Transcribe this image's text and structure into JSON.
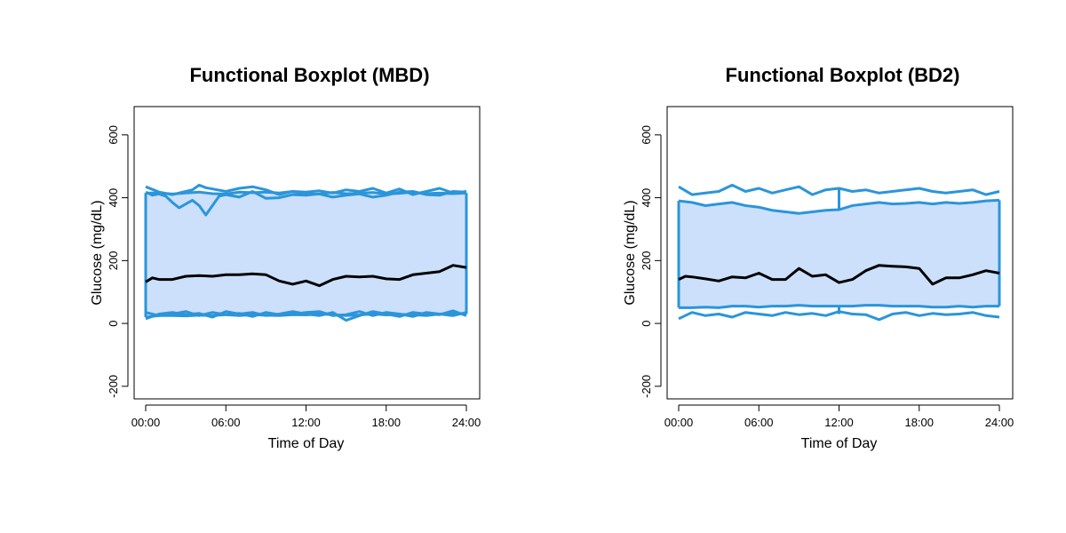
{
  "chart_data": [
    {
      "type": "line",
      "title": "Functional Boxplot (MBD)",
      "xlabel": "Time of Day",
      "ylabel": "Glucose (mg/dL)",
      "xlim": [
        0,
        24
      ],
      "ylim": [
        -240,
        690
      ],
      "x_ticks": [
        0,
        6,
        12,
        18,
        24
      ],
      "x_tick_labels": [
        "00:00",
        "06:00",
        "12:00",
        "18:00",
        "24:00"
      ],
      "y_ticks": [
        -200,
        0,
        200,
        400,
        600
      ],
      "y_tick_labels": [
        "-200",
        "0",
        "200",
        "400",
        "600"
      ],
      "grid": false,
      "band": {
        "x": [
          0,
          1,
          2,
          3,
          4,
          5,
          6,
          7,
          8,
          9,
          10,
          11,
          12,
          13,
          14,
          15,
          16,
          17,
          18,
          19,
          20,
          21,
          22,
          23,
          24
        ],
        "upper": [
          415,
          415,
          412,
          415,
          418,
          413,
          412,
          418,
          416,
          418,
          415,
          420,
          412,
          412,
          417,
          413,
          414,
          417,
          412,
          414,
          418,
          413,
          415,
          413,
          415
        ],
        "lower": [
          20,
          25,
          25,
          24,
          26,
          25,
          28,
          25,
          28,
          26,
          25,
          28,
          27,
          30,
          28,
          25,
          27,
          30,
          27,
          29,
          28,
          25,
          30,
          32,
          30
        ],
        "fill": "#cce0fb",
        "edge": "#2b95da"
      },
      "series": [
        {
          "role": "outer-upper",
          "color": "#2b95da",
          "x": [
            0,
            1,
            2,
            3,
            3.5,
            4,
            4.5,
            5,
            6,
            7,
            8,
            9,
            10,
            11,
            12,
            13,
            14,
            15,
            16,
            17,
            18,
            19,
            20,
            21,
            22,
            23,
            24
          ],
          "values": [
            435,
            418,
            410,
            420,
            425,
            440,
            432,
            428,
            420,
            430,
            435,
            425,
            410,
            420,
            418,
            422,
            415,
            425,
            420,
            430,
            415,
            428,
            410,
            420,
            430,
            415,
            420
          ]
        },
        {
          "role": "outer-upper-dip",
          "color": "#2b95da",
          "x": [
            0,
            0.5,
            1,
            1.5,
            2,
            2.5,
            3,
            3.5,
            4,
            4.5,
            5,
            5.5,
            6,
            7,
            8,
            9,
            10,
            11,
            12,
            13,
            14,
            15,
            16,
            17,
            18,
            19,
            20,
            21,
            22,
            23,
            24
          ],
          "values": [
            418,
            408,
            412,
            405,
            385,
            368,
            380,
            392,
            375,
            345,
            375,
            405,
            410,
            402,
            420,
            398,
            400,
            410,
            408,
            412,
            402,
            408,
            412,
            402,
            408,
            418,
            420,
            410,
            408,
            420,
            418
          ]
        },
        {
          "role": "outer-lower",
          "color": "#2b95da",
          "x": [
            0,
            1,
            2,
            3,
            4,
            5,
            6,
            7,
            8,
            9,
            10,
            11,
            12,
            13,
            14,
            15,
            16,
            17,
            18,
            19,
            20,
            21,
            22,
            23,
            24
          ],
          "values": [
            15,
            30,
            35,
            28,
            32,
            20,
            38,
            30,
            35,
            25,
            30,
            38,
            30,
            25,
            35,
            10,
            25,
            38,
            30,
            22,
            35,
            30,
            28,
            40,
            25
          ]
        },
        {
          "role": "outer-lower-2",
          "color": "#2b95da",
          "x": [
            0,
            1,
            2,
            3,
            4,
            5,
            6,
            7,
            8,
            9,
            10,
            11,
            12,
            13,
            14,
            15,
            16,
            17,
            18,
            19,
            20,
            21,
            22,
            23,
            24
          ],
          "values": [
            35,
            25,
            30,
            38,
            25,
            35,
            28,
            32,
            22,
            35,
            28,
            30,
            35,
            38,
            25,
            28,
            38,
            25,
            35,
            30,
            22,
            35,
            30,
            25,
            35
          ]
        },
        {
          "role": "median",
          "color": "#000000",
          "x": [
            0,
            0.5,
            1,
            2,
            3,
            4,
            5,
            6,
            7,
            8,
            9,
            10,
            11,
            12,
            13,
            14,
            15,
            16,
            17,
            18,
            19,
            20,
            21,
            22,
            23,
            24
          ],
          "values": [
            132,
            145,
            140,
            140,
            150,
            152,
            150,
            155,
            155,
            158,
            155,
            135,
            125,
            135,
            120,
            140,
            150,
            148,
            150,
            142,
            140,
            155,
            160,
            165,
            185,
            178
          ]
        }
      ]
    },
    {
      "type": "line",
      "title": "Functional Boxplot (BD2)",
      "xlabel": "Time of Day",
      "ylabel": "Glucose (mg/dL)",
      "xlim": [
        0,
        24
      ],
      "ylim": [
        -240,
        690
      ],
      "x_ticks": [
        0,
        6,
        12,
        18,
        24
      ],
      "x_tick_labels": [
        "00:00",
        "06:00",
        "12:00",
        "18:00",
        "24:00"
      ],
      "y_ticks": [
        -200,
        0,
        200,
        400,
        600
      ],
      "y_tick_labels": [
        "-200",
        "0",
        "200",
        "400",
        "600"
      ],
      "grid": false,
      "band": {
        "x": [
          0,
          1,
          2,
          3,
          4,
          5,
          6,
          7,
          8,
          9,
          10,
          11,
          12,
          13,
          14,
          15,
          16,
          17,
          18,
          19,
          20,
          21,
          22,
          23,
          24
        ],
        "upper": [
          390,
          385,
          375,
          380,
          385,
          375,
          370,
          360,
          355,
          350,
          355,
          360,
          362,
          375,
          380,
          385,
          380,
          382,
          385,
          380,
          385,
          382,
          385,
          390,
          392
        ],
        "lower": [
          50,
          50,
          52,
          50,
          55,
          55,
          52,
          55,
          55,
          58,
          55,
          55,
          55,
          55,
          58,
          58,
          55,
          55,
          55,
          52,
          52,
          55,
          52,
          55,
          55
        ],
        "fill": "#cce0fb",
        "edge": "#2b95da"
      },
      "series": [
        {
          "role": "outer-upper",
          "color": "#2b95da",
          "x": [
            0,
            1,
            2,
            3,
            4,
            5,
            6,
            7,
            8,
            9,
            10,
            11,
            12,
            13,
            14,
            15,
            16,
            17,
            18,
            19,
            20,
            21,
            22,
            23,
            24
          ],
          "values": [
            435,
            410,
            415,
            420,
            440,
            420,
            430,
            415,
            425,
            435,
            410,
            425,
            430,
            420,
            425,
            415,
            420,
            425,
            430,
            420,
            415,
            420,
            425,
            410,
            420
          ]
        },
        {
          "role": "outer-lower",
          "color": "#2b95da",
          "x": [
            0,
            1,
            2,
            3,
            4,
            5,
            6,
            7,
            8,
            9,
            10,
            11,
            12,
            13,
            14,
            15,
            16,
            17,
            18,
            19,
            20,
            21,
            22,
            23,
            24
          ],
          "values": [
            15,
            35,
            25,
            30,
            20,
            35,
            30,
            25,
            35,
            28,
            32,
            25,
            38,
            30,
            28,
            12,
            30,
            35,
            25,
            32,
            28,
            30,
            35,
            25,
            20
          ]
        },
        {
          "role": "median",
          "color": "#000000",
          "x": [
            0,
            0.5,
            1,
            2,
            3,
            4,
            5,
            6,
            7,
            8,
            9,
            10,
            11,
            12,
            13,
            14,
            15,
            16,
            17,
            18,
            19,
            20,
            21,
            22,
            23,
            24
          ],
          "values": [
            140,
            150,
            148,
            142,
            135,
            148,
            145,
            160,
            140,
            140,
            175,
            150,
            155,
            130,
            140,
            168,
            185,
            182,
            180,
            175,
            125,
            145,
            145,
            155,
            168,
            160
          ]
        }
      ]
    }
  ]
}
